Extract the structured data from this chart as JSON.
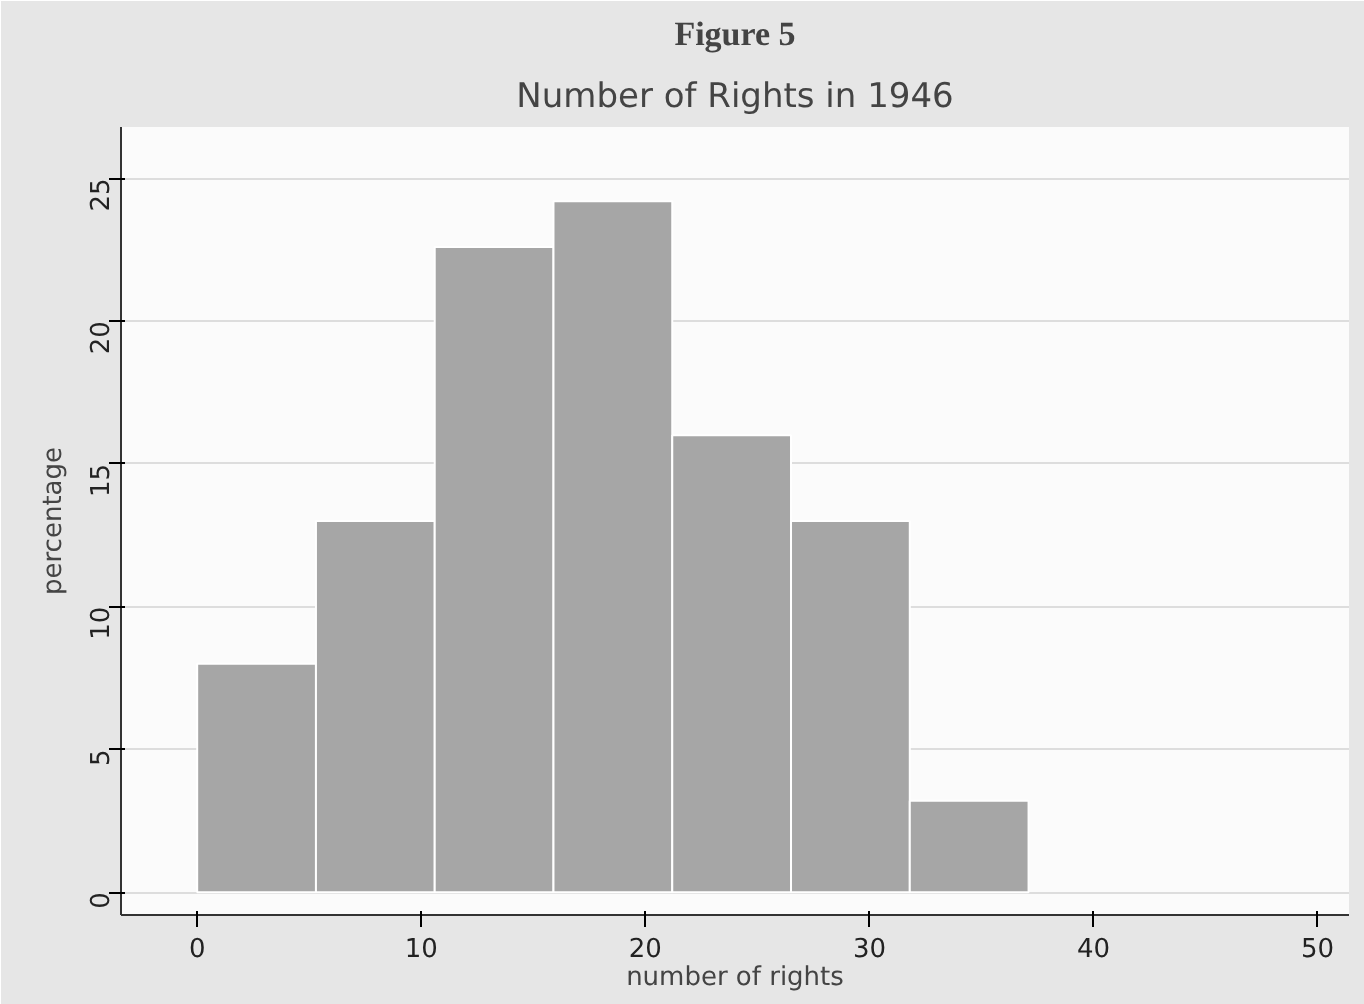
{
  "chart_data": {
    "type": "histogram",
    "title": "Number of Rights in 1946",
    "xlabel": "number of rights",
    "ylabel": "percentage",
    "annotations": [
      "Figure 5"
    ],
    "bins": [
      0,
      5.3,
      10.6,
      15.9,
      21.2,
      26.5,
      31.8,
      37.1
    ],
    "values": [
      8,
      13,
      22.6,
      24.2,
      16,
      13,
      3.2
    ],
    "color": "#a6a6a6",
    "xlim": [
      -3.4,
      51.4
    ],
    "ylim": [
      -0.8,
      26.8
    ],
    "xticks": [
      0,
      10,
      20,
      30,
      40,
      50
    ],
    "yticks": [
      0,
      5,
      10,
      15,
      20,
      25
    ],
    "grid": "y"
  }
}
